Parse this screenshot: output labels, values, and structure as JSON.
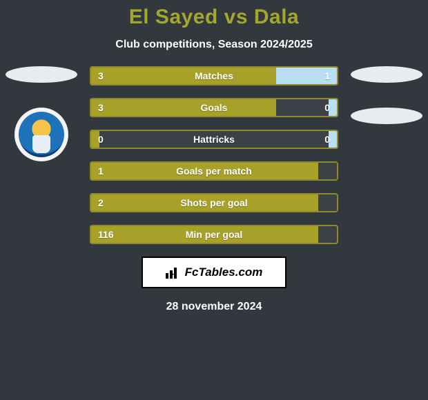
{
  "colors": {
    "background": "#33383e",
    "title": "#a3a72e",
    "text": "#ffffff",
    "brand_bg": "#ffffff",
    "brand_text": "#000000",
    "oval": "#e9ecef",
    "player1_fill": "#a7a12a",
    "player2_fill": "#b9dff4",
    "bar_empty": "#3c4148",
    "bar_border": "#8f8a2a"
  },
  "title": "El Sayed vs Dala",
  "subtitle": "Club competitions, Season 2024/2025",
  "brand": "FcTables.com",
  "date": "28 november 2024",
  "metrics": [
    {
      "label": "Matches",
      "left_value": "3",
      "right_value": "1",
      "left_pct": 75,
      "right_pct": 25
    },
    {
      "label": "Goals",
      "left_value": "3",
      "right_value": "0",
      "left_pct": 75,
      "right_pct": 4
    },
    {
      "label": "Hattricks",
      "left_value": "0",
      "right_value": "0",
      "left_pct": 4,
      "right_pct": 4
    },
    {
      "label": "Goals per match",
      "left_value": "1",
      "right_value": "",
      "left_pct": 92,
      "right_pct": 0
    },
    {
      "label": "Shots per goal",
      "left_value": "2",
      "right_value": "",
      "left_pct": 92,
      "right_pct": 0
    },
    {
      "label": "Min per goal",
      "left_value": "116",
      "right_value": "",
      "left_pct": 92,
      "right_pct": 0
    }
  ],
  "bar": {
    "height": 28,
    "gap": 18,
    "border_radius": 4,
    "font_size": 14
  },
  "layout": {
    "bars_width": 360,
    "side_col_width": 120,
    "oval_w": 104,
    "oval_h": 24
  }
}
